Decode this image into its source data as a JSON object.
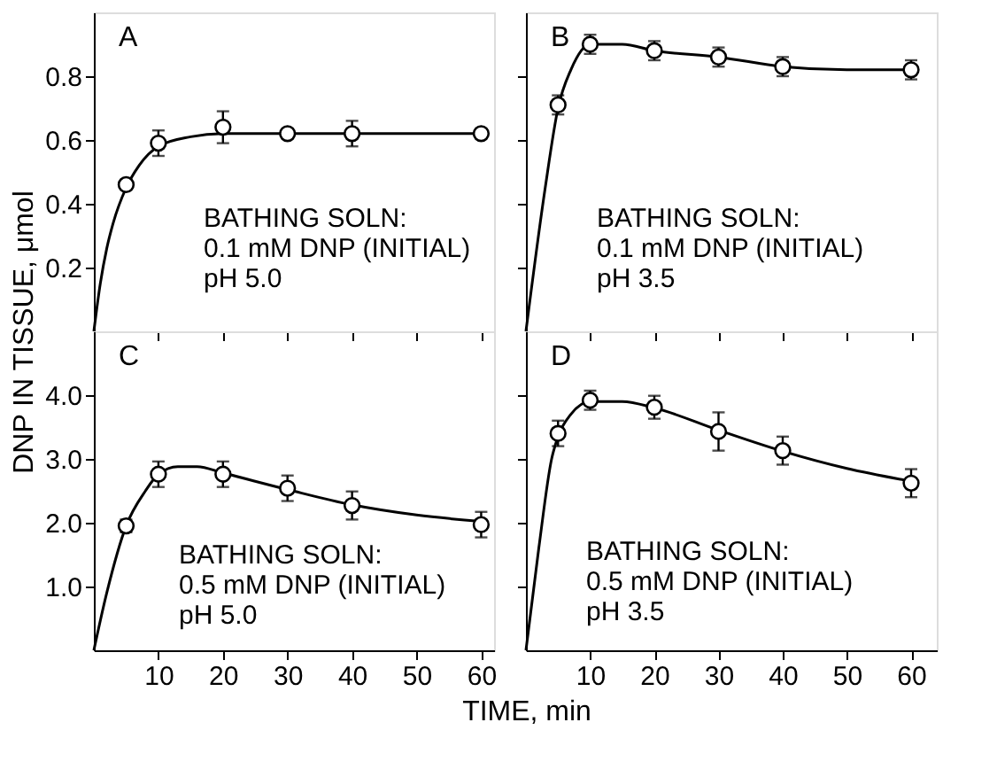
{
  "chart_data": [
    {
      "type": "scatter",
      "xlim": [
        0,
        62
      ],
      "ylim": [
        0,
        1.0
      ],
      "xticks": [
        10,
        20,
        30,
        40,
        50,
        60
      ],
      "yticks": [
        0.2,
        0.4,
        0.6,
        0.8
      ],
      "tick_labels": "y",
      "grid": false,
      "annotations": [
        "A",
        "BATHING SOLN:",
        "0.1 mM DNP (INITIAL)",
        "pH 5.0"
      ],
      "series": [
        {
          "type": "line",
          "color": "#000000",
          "x": [
            0,
            1,
            2,
            3,
            5,
            7,
            10,
            15,
            20,
            30,
            40,
            50,
            60
          ],
          "values": [
            0,
            0.15,
            0.26,
            0.34,
            0.45,
            0.52,
            0.58,
            0.61,
            0.62,
            0.62,
            0.62,
            0.62,
            0.62
          ]
        },
        {
          "type": "scatter",
          "marker": "circle",
          "color": "#000000",
          "x": [
            5,
            10,
            20,
            30,
            40,
            60
          ],
          "values": [
            0.46,
            0.59,
            0.64,
            0.62,
            0.62,
            0.62
          ],
          "errors": [
            null,
            0.04,
            0.05,
            null,
            0.04,
            null
          ]
        }
      ]
    },
    {
      "type": "scatter",
      "xlim": [
        0,
        64
      ],
      "ylim": [
        0,
        1.0
      ],
      "xticks": [
        10,
        20,
        30,
        40,
        50,
        60
      ],
      "yticks": [
        0.2,
        0.4,
        0.6,
        0.8
      ],
      "tick_labels": false,
      "grid": false,
      "annotations": [
        "B",
        "BATHING SOLN:",
        "0.1 mM DNP (INITIAL)",
        "pH 3.5"
      ],
      "series": [
        {
          "type": "line",
          "color": "#000000",
          "x": [
            0,
            3,
            5,
            7,
            10,
            15,
            20,
            30,
            40,
            50,
            60
          ],
          "values": [
            0,
            0.45,
            0.7,
            0.82,
            0.9,
            0.9,
            0.88,
            0.86,
            0.83,
            0.82,
            0.82
          ]
        },
        {
          "type": "scatter",
          "marker": "circle",
          "color": "#000000",
          "x": [
            5,
            10,
            20,
            30,
            40,
            60
          ],
          "values": [
            0.71,
            0.9,
            0.88,
            0.86,
            0.83,
            0.82
          ],
          "errors": [
            0.03,
            0.03,
            0.03,
            0.03,
            0.03,
            0.03
          ]
        }
      ]
    },
    {
      "type": "scatter",
      "xlim": [
        0,
        62
      ],
      "ylim": [
        0,
        5.0
      ],
      "xticks": [
        10,
        20,
        30,
        40,
        50,
        60
      ],
      "yticks": [
        {
          "value": 1,
          "label": "1.0"
        },
        {
          "value": 2,
          "label": "2.0"
        },
        {
          "value": 3,
          "label": "3.0"
        },
        {
          "value": 4,
          "label": "4.0"
        }
      ],
      "grid": false,
      "ylabel": "DNP IN TISSUE, μmol",
      "annotations": [
        "C",
        "BATHING SOLN:",
        "0.5 mM DNP (INITIAL)",
        "pH 5.0"
      ],
      "series": [
        {
          "type": "line",
          "color": "#000000",
          "x": [
            0,
            2,
            5,
            8,
            10,
            13,
            16,
            20,
            30,
            40,
            50,
            60
          ],
          "values": [
            0,
            0.9,
            1.95,
            2.5,
            2.76,
            2.88,
            2.88,
            2.78,
            2.52,
            2.28,
            2.12,
            2.02
          ]
        },
        {
          "type": "scatter",
          "marker": "circle",
          "color": "#000000",
          "x": [
            5,
            10,
            20,
            30,
            40,
            60
          ],
          "values": [
            1.95,
            2.76,
            2.76,
            2.54,
            2.27,
            1.97
          ],
          "errors": [
            0.1,
            0.2,
            0.2,
            0.2,
            0.22,
            0.2
          ]
        }
      ]
    },
    {
      "type": "scatter",
      "xlim": [
        0,
        64
      ],
      "ylim": [
        0,
        5.0
      ],
      "xticks": [
        10,
        20,
        30,
        40,
        50,
        60
      ],
      "yticks": [
        1,
        2,
        3,
        4
      ],
      "tick_labels": "x",
      "grid": false,
      "xlabel": "TIME, min",
      "annotations": [
        "D",
        "BATHING SOLN:",
        "0.5 mM DNP (INITIAL)",
        "pH 3.5"
      ],
      "series": [
        {
          "type": "line",
          "color": "#000000",
          "x": [
            0,
            2,
            4,
            5,
            7,
            10,
            15,
            20,
            30,
            40,
            50,
            60
          ],
          "values": [
            0,
            1.6,
            3.0,
            3.35,
            3.7,
            3.9,
            3.9,
            3.8,
            3.45,
            3.12,
            2.85,
            2.65
          ]
        },
        {
          "type": "scatter",
          "marker": "circle",
          "color": "#000000",
          "x": [
            5,
            10,
            20,
            30,
            40,
            60
          ],
          "values": [
            3.4,
            3.92,
            3.81,
            3.43,
            3.13,
            2.62
          ],
          "errors": [
            0.2,
            0.15,
            0.18,
            0.3,
            0.22,
            0.22
          ]
        }
      ]
    }
  ]
}
